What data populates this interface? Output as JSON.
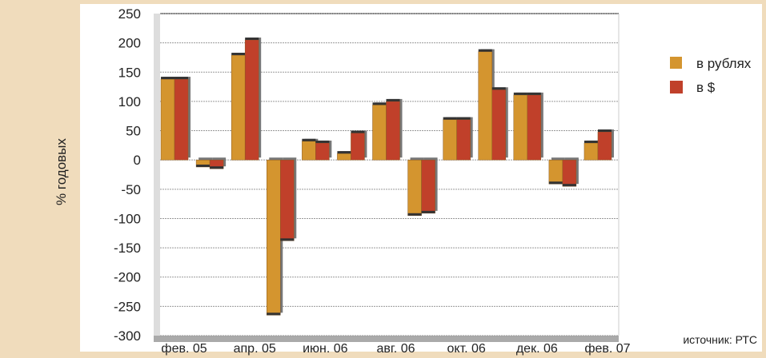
{
  "chart_data": {
    "type": "bar",
    "ylabel": "% годовых",
    "ylim": [
      -300,
      250
    ],
    "yticks": [
      250,
      200,
      150,
      100,
      50,
      0,
      -50,
      -100,
      -150,
      -200,
      -250,
      -300
    ],
    "grid": true,
    "legend_position": "right",
    "x_tick_labels": [
      "фев. 05",
      "апр. 05",
      "июн. 06",
      "авг. 06",
      "окт. 06",
      "дек. 06",
      "фев. 07"
    ],
    "group_count": 13,
    "series": [
      {
        "name": "в рублях",
        "color": "#d4952f",
        "values": [
          138,
          -12,
          179,
          -265,
          32,
          11,
          94,
          -95,
          69,
          185,
          111,
          -41,
          29
        ]
      },
      {
        "name": "в $",
        "color": "#c0402a",
        "values": [
          138,
          -15,
          205,
          -138,
          29,
          46,
          100,
          -91,
          69,
          120,
          111,
          -45,
          48
        ]
      }
    ],
    "source": "источник: РТС"
  }
}
